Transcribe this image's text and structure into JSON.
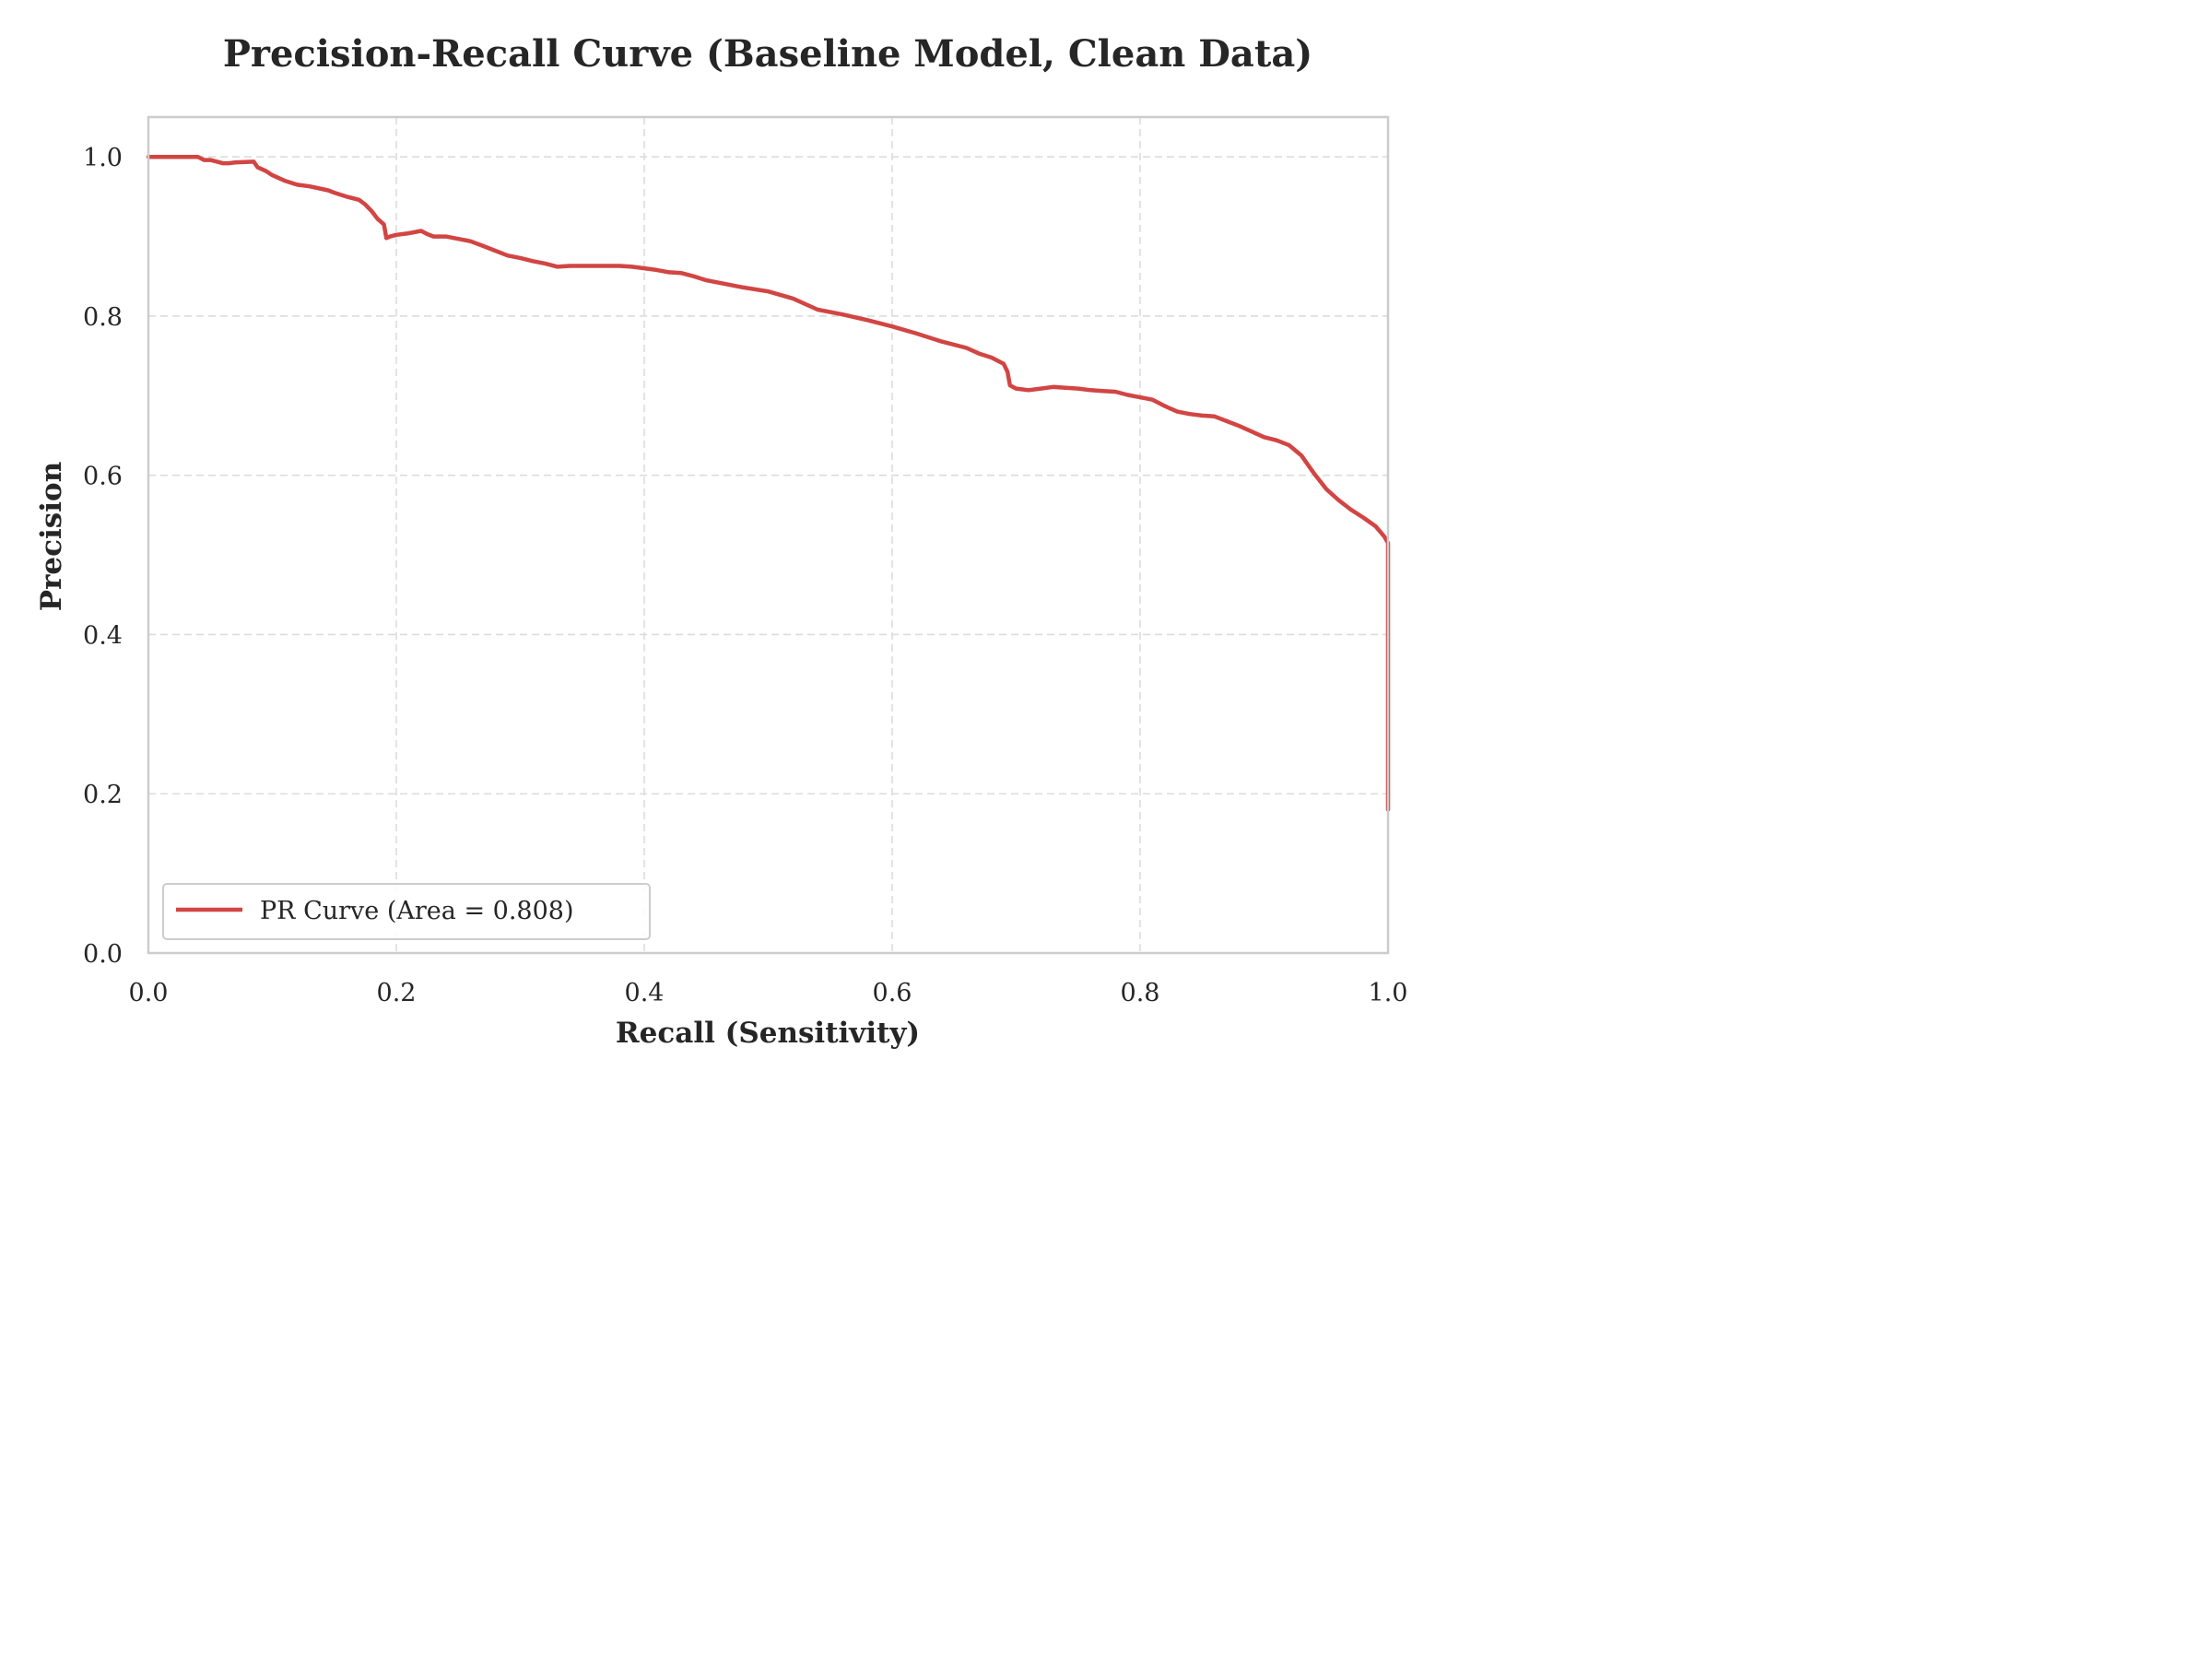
{
  "chart_data": {
    "type": "line",
    "title": "Precision-Recall Curve (Baseline Model, Clean Data)",
    "xlabel": "Recall (Sensitivity)",
    "ylabel": "Precision",
    "xlim": [
      0.0,
      1.0
    ],
    "ylim": [
      0.0,
      1.05
    ],
    "xticks": [
      0.0,
      0.2,
      0.4,
      0.6,
      0.8,
      1.0
    ],
    "yticks": [
      0.0,
      0.2,
      0.4,
      0.6,
      0.8,
      1.0
    ],
    "xtick_labels": [
      "0.0",
      "0.2",
      "0.4",
      "0.6",
      "0.8",
      "1.0"
    ],
    "ytick_labels": [
      "0.0",
      "0.2",
      "0.4",
      "0.6",
      "0.8",
      "1.0"
    ],
    "grid": true,
    "legend_position": "lower-left",
    "series": [
      {
        "name": "PR Curve (Area = 0.808)",
        "color": "#d14543",
        "x": [
          0.0,
          0.04,
          0.045,
          0.05,
          0.06,
          0.065,
          0.07,
          0.085,
          0.088,
          0.095,
          0.1,
          0.11,
          0.12,
          0.13,
          0.145,
          0.15,
          0.16,
          0.17,
          0.175,
          0.18,
          0.185,
          0.19,
          0.192,
          0.195,
          0.2,
          0.21,
          0.22,
          0.225,
          0.23,
          0.24,
          0.25,
          0.26,
          0.27,
          0.28,
          0.29,
          0.3,
          0.31,
          0.32,
          0.33,
          0.34,
          0.35,
          0.36,
          0.38,
          0.39,
          0.4,
          0.41,
          0.42,
          0.43,
          0.44,
          0.45,
          0.46,
          0.48,
          0.5,
          0.52,
          0.53,
          0.54,
          0.55,
          0.56,
          0.58,
          0.6,
          0.62,
          0.64,
          0.66,
          0.67,
          0.68,
          0.69,
          0.693,
          0.695,
          0.7,
          0.71,
          0.72,
          0.73,
          0.74,
          0.75,
          0.76,
          0.77,
          0.78,
          0.79,
          0.8,
          0.81,
          0.82,
          0.83,
          0.84,
          0.85,
          0.86,
          0.87,
          0.88,
          0.89,
          0.9,
          0.91,
          0.92,
          0.93,
          0.94,
          0.95,
          0.96,
          0.97,
          0.98,
          0.99,
          0.997,
          1.0,
          1.0
        ],
        "y": [
          1.0,
          1.0,
          0.996,
          0.996,
          0.992,
          0.992,
          0.993,
          0.994,
          0.987,
          0.982,
          0.977,
          0.97,
          0.965,
          0.963,
          0.958,
          0.955,
          0.95,
          0.946,
          0.94,
          0.932,
          0.922,
          0.915,
          0.898,
          0.9,
          0.902,
          0.904,
          0.907,
          0.903,
          0.9,
          0.9,
          0.897,
          0.894,
          0.888,
          0.882,
          0.876,
          0.873,
          0.869,
          0.866,
          0.862,
          0.863,
          0.863,
          0.863,
          0.863,
          0.862,
          0.86,
          0.858,
          0.855,
          0.854,
          0.85,
          0.845,
          0.842,
          0.836,
          0.831,
          0.822,
          0.815,
          0.808,
          0.805,
          0.802,
          0.795,
          0.787,
          0.778,
          0.768,
          0.76,
          0.753,
          0.748,
          0.74,
          0.73,
          0.713,
          0.709,
          0.707,
          0.709,
          0.711,
          0.71,
          0.709,
          0.707,
          0.706,
          0.705,
          0.701,
          0.698,
          0.695,
          0.687,
          0.68,
          0.677,
          0.675,
          0.674,
          0.668,
          0.662,
          0.655,
          0.648,
          0.644,
          0.638,
          0.625,
          0.603,
          0.583,
          0.569,
          0.557,
          0.547,
          0.536,
          0.523,
          0.515,
          0.18
        ]
      }
    ]
  }
}
